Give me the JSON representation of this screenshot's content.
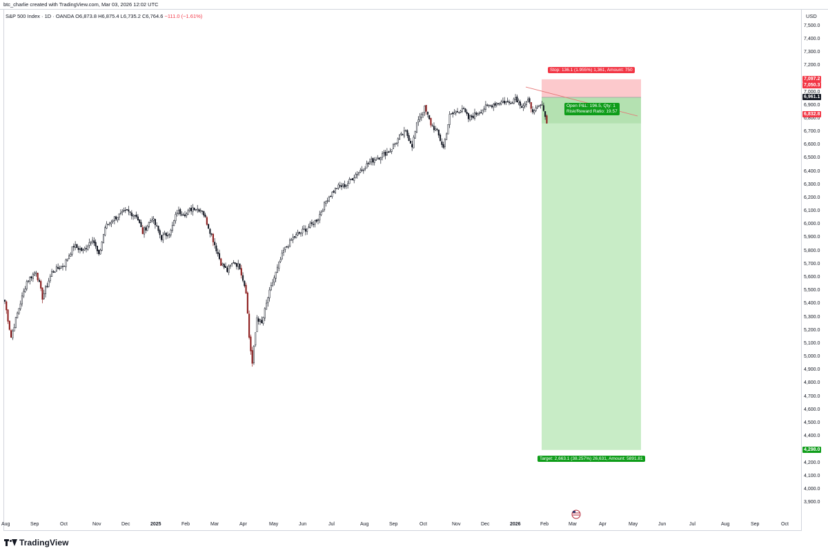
{
  "header": {
    "creator": "btc_charlie created with TradingView.com, Mar 03, 2026 12:02 UTC"
  },
  "legend": {
    "symbol": "S&P 500 Index · 1D · OANDA",
    "open": "O6,873.8",
    "high": "H6,875.4",
    "low": "L6,735.2",
    "close": "C6,764.6",
    "change": "−111.0 (−1.61%)"
  },
  "price_axis": {
    "currency": "USD",
    "labels": [
      "7,500.0",
      "7,400.0",
      "7,300.0",
      "7,200.0",
      "7,100.0",
      "7,000.0",
      "6,900.0",
      "6,800.0",
      "6,700.0",
      "6,600.0",
      "6,500.0",
      "6,400.0",
      "6,300.0",
      "6,200.0",
      "6,100.0",
      "6,000.0",
      "5,900.0",
      "5,800.0",
      "5,700.0",
      "5,600.0",
      "5,500.0",
      "5,400.0",
      "5,300.0",
      "5,200.0",
      "5,100.0",
      "5,000.0",
      "4,900.0",
      "4,800.0",
      "4,700.0",
      "4,600.0",
      "4,500.0",
      "4,400.0",
      "4,300.0",
      "4,200.0",
      "4,100.0",
      "4,000.0",
      "3,900.0"
    ],
    "values": [
      7500,
      7400,
      7300,
      7200,
      7100,
      7000,
      6900,
      6800,
      6700,
      6600,
      6500,
      6400,
      6300,
      6200,
      6100,
      6000,
      5900,
      5800,
      5700,
      5600,
      5500,
      5400,
      5300,
      5200,
      5100,
      5000,
      4900,
      4800,
      4700,
      4600,
      4500,
      4400,
      4300,
      4200,
      4100,
      4000,
      3900
    ],
    "tags": [
      {
        "label": "7,097.2",
        "value": 7097.2,
        "color": "#f23645"
      },
      {
        "label": "7,050.3",
        "value": 7050.3,
        "color": "#f23645"
      },
      {
        "label": "6,961.1",
        "value": 6961.1,
        "color": "#131722"
      },
      {
        "label": "6,832.8",
        "value": 6832.8,
        "color": "#f23645"
      },
      {
        "label": "4,298.0",
        "value": 4298.0,
        "color": "#0f9d1a"
      }
    ]
  },
  "time_axis": {
    "labels": [
      {
        "text": "Aug",
        "bold": false
      },
      {
        "text": "Sep",
        "bold": false
      },
      {
        "text": "Oct",
        "bold": false
      },
      {
        "text": "Nov",
        "bold": false
      },
      {
        "text": "Dec",
        "bold": false
      },
      {
        "text": "2025",
        "bold": true
      },
      {
        "text": "Feb",
        "bold": false
      },
      {
        "text": "Mar",
        "bold": false
      },
      {
        "text": "Apr",
        "bold": false
      },
      {
        "text": "May",
        "bold": false
      },
      {
        "text": "Jun",
        "bold": false
      },
      {
        "text": "Jul",
        "bold": false
      },
      {
        "text": "Aug",
        "bold": false
      },
      {
        "text": "Sep",
        "bold": false
      },
      {
        "text": "Oct",
        "bold": false
      },
      {
        "text": "Nov",
        "bold": false
      },
      {
        "text": "Dec",
        "bold": false
      },
      {
        "text": "2026",
        "bold": true
      },
      {
        "text": "Feb",
        "bold": false
      },
      {
        "text": "Mar",
        "bold": false
      },
      {
        "text": "Apr",
        "bold": false
      },
      {
        "text": "May",
        "bold": false
      },
      {
        "text": "Jun",
        "bold": false
      },
      {
        "text": "Jul",
        "bold": false
      },
      {
        "text": "Aug",
        "bold": false
      },
      {
        "text": "Sep",
        "bold": false
      },
      {
        "text": "Oct",
        "bold": false
      }
    ]
  },
  "position": {
    "stop_label": "Stop: 136.1 (1.955%) 1,361, Amount: 750",
    "target_label": "Target: 2,663.1 (38.257%) 26,631, Amount: 5891.81",
    "open_pl_label": "Open P&L: 196.5, Qty: 1",
    "ratio_label": "Risk/Reward Ratio: 19.57",
    "entry": 6961.1,
    "stop": 7097.2,
    "target": 4298.0,
    "current": 6764.6
  },
  "branding": {
    "name": "TradingView"
  },
  "colors": {
    "up": "#131722",
    "down": "#f23645",
    "stop_zone": "#fcc9cc",
    "target_zone": "#c8ecc6",
    "trendline": "#e57373"
  },
  "chart_data": {
    "type": "candlestick",
    "title": "S&P 500 Index · 1D · OANDA",
    "ylim": [
      3900,
      7500
    ],
    "monthly_close_trend": [
      {
        "month": "Aug 2024",
        "value": 5650
      },
      {
        "month": "Sep 2024",
        "value": 5700
      },
      {
        "month": "Oct 2024",
        "value": 5800
      },
      {
        "month": "Nov 2024",
        "value": 6000
      },
      {
        "month": "Dec 2024",
        "value": 5900
      },
      {
        "month": "Jan 2025",
        "value": 6050
      },
      {
        "month": "Feb 2025",
        "value": 6000
      },
      {
        "month": "Mar 2025",
        "value": 5600
      },
      {
        "month": "Apr 2025",
        "value": 5500
      },
      {
        "month": "May 2025",
        "value": 5900
      },
      {
        "month": "Jun 2025",
        "value": 6200
      },
      {
        "month": "Jul 2025",
        "value": 6350
      },
      {
        "month": "Aug 2025",
        "value": 6450
      },
      {
        "month": "Sep 2025",
        "value": 6650
      },
      {
        "month": "Oct 2025",
        "value": 6820
      },
      {
        "month": "Nov 2025",
        "value": 6830
      },
      {
        "month": "Dec 2025",
        "value": 6900
      },
      {
        "month": "Jan 2026",
        "value": 6940
      },
      {
        "month": "Feb 2026",
        "value": 6870
      },
      {
        "month": "Mar 2026",
        "value": 6765
      }
    ],
    "anchors": [
      [
        0,
        5420
      ],
      [
        4,
        5150
      ],
      [
        8,
        5330
      ],
      [
        14,
        5570
      ],
      [
        20,
        5650
      ],
      [
        24,
        5450
      ],
      [
        30,
        5640
      ],
      [
        38,
        5700
      ],
      [
        44,
        5840
      ],
      [
        50,
        5800
      ],
      [
        56,
        5900
      ],
      [
        60,
        5760
      ],
      [
        64,
        5980
      ],
      [
        70,
        6050
      ],
      [
        78,
        6100
      ],
      [
        84,
        6070
      ],
      [
        88,
        5940
      ],
      [
        94,
        6050
      ],
      [
        100,
        5900
      ],
      [
        106,
        5950
      ],
      [
        110,
        6100
      ],
      [
        116,
        6080
      ],
      [
        120,
        6130
      ],
      [
        126,
        6110
      ],
      [
        132,
        5920
      ],
      [
        138,
        5710
      ],
      [
        142,
        5650
      ],
      [
        146,
        5720
      ],
      [
        150,
        5680
      ],
      [
        154,
        5500
      ],
      [
        156,
        5150
      ],
      [
        158,
        4950
      ],
      [
        161,
        5300
      ],
      [
        164,
        5250
      ],
      [
        168,
        5450
      ],
      [
        172,
        5600
      ],
      [
        178,
        5800
      ],
      [
        184,
        5900
      ],
      [
        190,
        5950
      ],
      [
        196,
        6000
      ],
      [
        200,
        6050
      ],
      [
        206,
        6200
      ],
      [
        212,
        6280
      ],
      [
        218,
        6300
      ],
      [
        224,
        6380
      ],
      [
        228,
        6420
      ],
      [
        234,
        6480
      ],
      [
        240,
        6520
      ],
      [
        246,
        6560
      ],
      [
        252,
        6660
      ],
      [
        256,
        6700
      ],
      [
        260,
        6600
      ],
      [
        264,
        6800
      ],
      [
        268,
        6880
      ],
      [
        272,
        6760
      ],
      [
        276,
        6700
      ],
      [
        280,
        6580
      ],
      [
        284,
        6820
      ],
      [
        288,
        6850
      ],
      [
        292,
        6880
      ],
      [
        296,
        6800
      ],
      [
        300,
        6830
      ],
      [
        306,
        6880
      ],
      [
        312,
        6910
      ],
      [
        318,
        6930
      ],
      [
        322,
        6920
      ],
      [
        326,
        6960
      ],
      [
        330,
        6900
      ],
      [
        334,
        6930
      ],
      [
        338,
        6850
      ],
      [
        342,
        6900
      ],
      [
        344,
        6880
      ],
      [
        346,
        6765
      ]
    ]
  }
}
